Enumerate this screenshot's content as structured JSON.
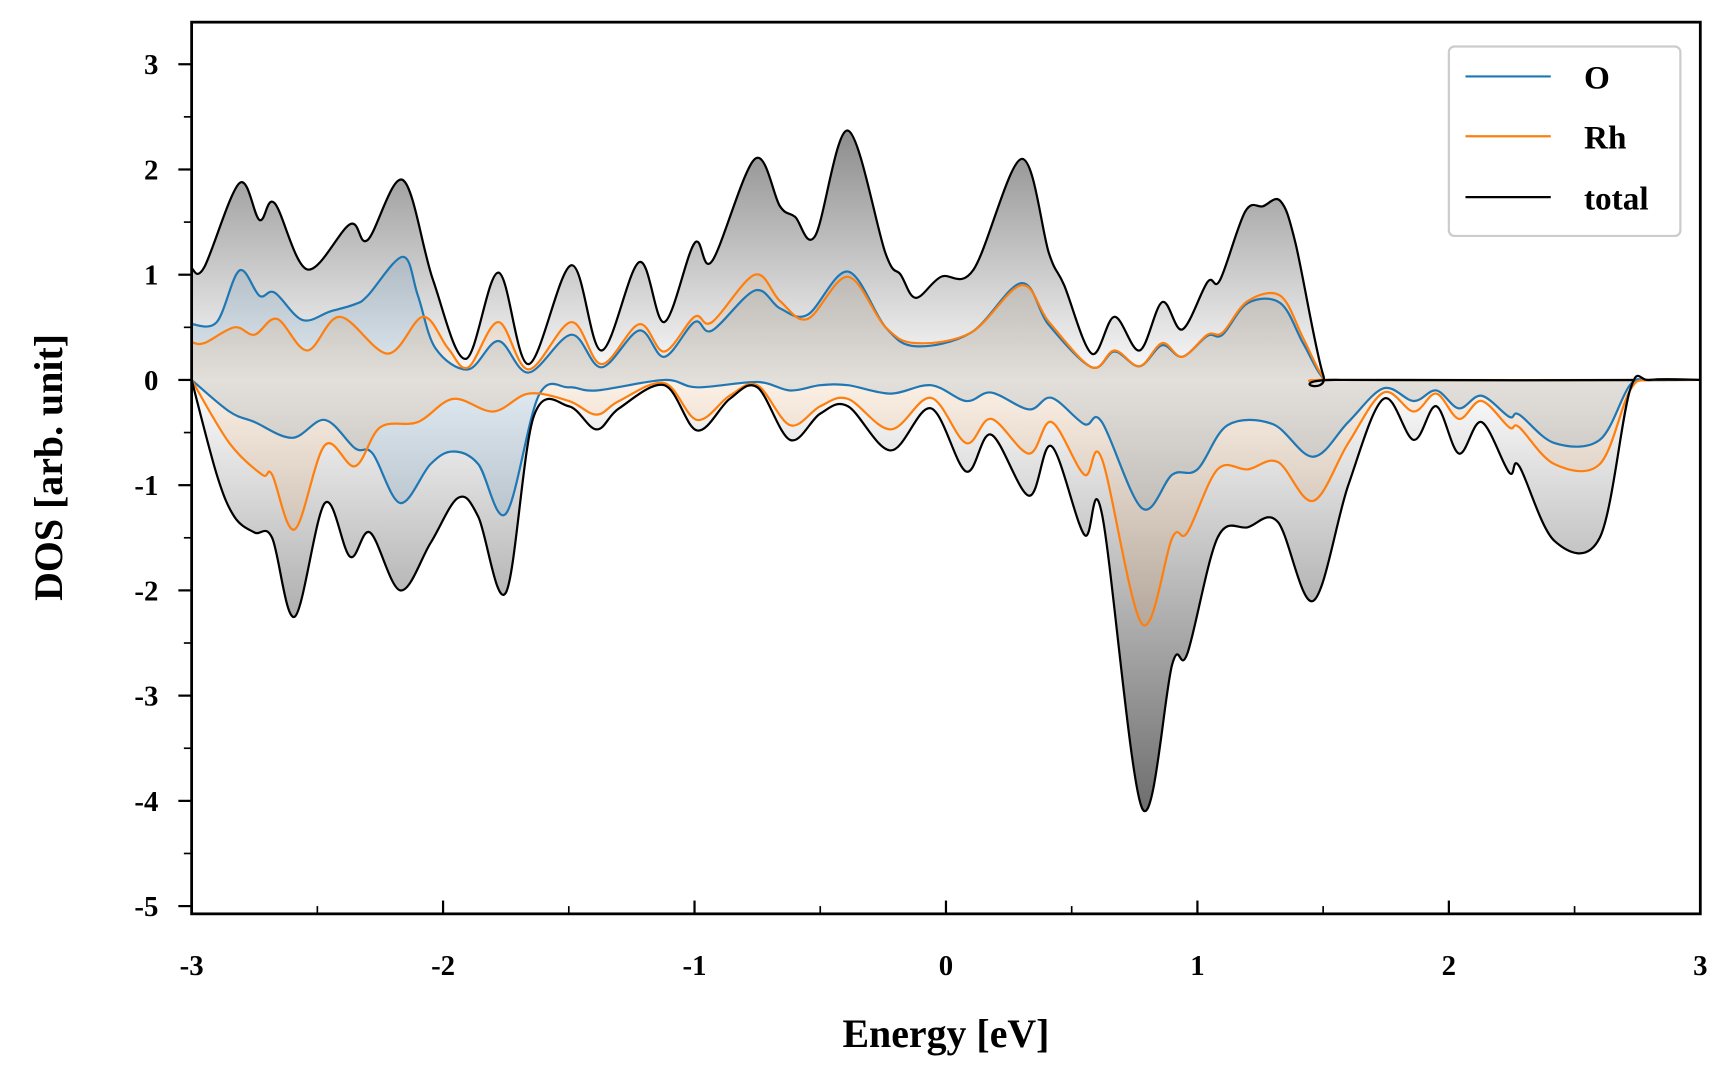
{
  "chart_data": {
    "type": "line",
    "title": "",
    "xlabel": "Energy [eV]",
    "ylabel": "DOS [arb. unit]",
    "xlim": [
      -3,
      3
    ],
    "ylim": [
      -5.1,
      3.35
    ],
    "xticks": [
      "-3",
      "-2",
      "-1",
      "0",
      "1",
      "2",
      "3"
    ],
    "xtick_values": [
      -3,
      -2,
      -1,
      0,
      1,
      2,
      3
    ],
    "yticks": [
      "3",
      "2",
      "1",
      "0",
      "-1",
      "-2",
      "-3",
      "-4",
      "-5"
    ],
    "ytick_values": [
      3,
      2,
      1,
      0,
      -1,
      -2,
      -3,
      -4,
      -5
    ],
    "grid": false,
    "legend_position": "top-right",
    "colors": {
      "O": "#1f77b4",
      "Rh": "#ff7f0e",
      "total": "#000000"
    },
    "series": [
      {
        "name": "O",
        "spin": "up",
        "points": [
          [
            -3,
            0.53
          ],
          [
            -2.9,
            0.55
          ],
          [
            -2.81,
            1.04
          ],
          [
            -2.73,
            0.8
          ],
          [
            -2.67,
            0.83
          ],
          [
            -2.56,
            0.57
          ],
          [
            -2.45,
            0.65
          ],
          [
            -2.35,
            0.72
          ],
          [
            -2.3,
            0.8
          ],
          [
            -2.16,
            1.17
          ],
          [
            -2.1,
            0.8
          ],
          [
            -2.03,
            0.3
          ],
          [
            -1.9,
            0.1
          ],
          [
            -1.78,
            0.37
          ],
          [
            -1.66,
            0.07
          ],
          [
            -1.49,
            0.43
          ],
          [
            -1.37,
            0.12
          ],
          [
            -1.22,
            0.47
          ],
          [
            -1.12,
            0.22
          ],
          [
            -1.0,
            0.55
          ],
          [
            -0.93,
            0.47
          ],
          [
            -0.76,
            0.85
          ],
          [
            -0.66,
            0.68
          ],
          [
            -0.55,
            0.62
          ],
          [
            -0.39,
            1.03
          ],
          [
            -0.24,
            0.5
          ],
          [
            -0.12,
            0.32
          ],
          [
            0.1,
            0.45
          ],
          [
            0.3,
            0.92
          ],
          [
            0.41,
            0.52
          ],
          [
            0.58,
            0.12
          ],
          [
            0.67,
            0.27
          ],
          [
            0.77,
            0.13
          ],
          [
            0.86,
            0.33
          ],
          [
            0.94,
            0.22
          ],
          [
            1.04,
            0.42
          ],
          [
            1.1,
            0.43
          ],
          [
            1.2,
            0.73
          ],
          [
            1.33,
            0.73
          ],
          [
            1.42,
            0.35
          ],
          [
            1.5,
            0.02
          ],
          [
            1.57,
            0
          ],
          [
            3,
            0
          ]
        ]
      },
      {
        "name": "Rh",
        "spin": "up",
        "points": [
          [
            -3,
            0.36
          ],
          [
            -2.95,
            0.35
          ],
          [
            -2.83,
            0.5
          ],
          [
            -2.75,
            0.43
          ],
          [
            -2.66,
            0.58
          ],
          [
            -2.54,
            0.28
          ],
          [
            -2.41,
            0.6
          ],
          [
            -2.22,
            0.25
          ],
          [
            -2.08,
            0.6
          ],
          [
            -1.98,
            0.3
          ],
          [
            -1.9,
            0.12
          ],
          [
            -1.78,
            0.55
          ],
          [
            -1.66,
            0.1
          ],
          [
            -1.49,
            0.55
          ],
          [
            -1.37,
            0.15
          ],
          [
            -1.22,
            0.53
          ],
          [
            -1.12,
            0.27
          ],
          [
            -1.0,
            0.6
          ],
          [
            -0.93,
            0.55
          ],
          [
            -0.76,
            1.0
          ],
          [
            -0.66,
            0.75
          ],
          [
            -0.55,
            0.58
          ],
          [
            -0.39,
            0.98
          ],
          [
            -0.24,
            0.5
          ],
          [
            -0.12,
            0.35
          ],
          [
            0.1,
            0.45
          ],
          [
            0.3,
            0.9
          ],
          [
            0.41,
            0.55
          ],
          [
            0.58,
            0.12
          ],
          [
            0.67,
            0.28
          ],
          [
            0.77,
            0.13
          ],
          [
            0.86,
            0.35
          ],
          [
            0.94,
            0.22
          ],
          [
            1.04,
            0.43
          ],
          [
            1.1,
            0.45
          ],
          [
            1.2,
            0.75
          ],
          [
            1.33,
            0.8
          ],
          [
            1.42,
            0.4
          ],
          [
            1.5,
            0.03
          ],
          [
            1.57,
            0
          ],
          [
            3,
            0
          ]
        ]
      },
      {
        "name": "total",
        "spin": "up",
        "points": [
          [
            -3,
            1.06
          ],
          [
            -2.95,
            1.07
          ],
          [
            -2.81,
            1.87
          ],
          [
            -2.73,
            1.52
          ],
          [
            -2.67,
            1.68
          ],
          [
            -2.54,
            1.05
          ],
          [
            -2.37,
            1.48
          ],
          [
            -2.3,
            1.33
          ],
          [
            -2.16,
            1.9
          ],
          [
            -2.04,
            0.95
          ],
          [
            -1.91,
            0.2
          ],
          [
            -1.78,
            1.02
          ],
          [
            -1.66,
            0.15
          ],
          [
            -1.49,
            1.09
          ],
          [
            -1.37,
            0.28
          ],
          [
            -1.22,
            1.12
          ],
          [
            -1.12,
            0.55
          ],
          [
            -1.0,
            1.3
          ],
          [
            -0.93,
            1.13
          ],
          [
            -0.76,
            2.1
          ],
          [
            -0.66,
            1.65
          ],
          [
            -0.6,
            1.55
          ],
          [
            -0.52,
            1.37
          ],
          [
            -0.39,
            2.37
          ],
          [
            -0.24,
            1.2
          ],
          [
            -0.18,
            1.0
          ],
          [
            -0.12,
            0.78
          ],
          [
            -0.02,
            0.98
          ],
          [
            0.11,
            1.05
          ],
          [
            0.3,
            2.1
          ],
          [
            0.41,
            1.2
          ],
          [
            0.47,
            0.9
          ],
          [
            0.58,
            0.25
          ],
          [
            0.67,
            0.6
          ],
          [
            0.77,
            0.28
          ],
          [
            0.86,
            0.74
          ],
          [
            0.94,
            0.48
          ],
          [
            1.04,
            0.93
          ],
          [
            1.09,
            0.95
          ],
          [
            1.19,
            1.6
          ],
          [
            1.26,
            1.65
          ],
          [
            1.33,
            1.7
          ],
          [
            1.39,
            1.3
          ],
          [
            1.5,
            0.05
          ],
          [
            1.57,
            0
          ],
          [
            3,
            0
          ]
        ]
      },
      {
        "name": "O",
        "spin": "down",
        "points": [
          [
            -3,
            0
          ],
          [
            -2.85,
            -0.3
          ],
          [
            -2.75,
            -0.4
          ],
          [
            -2.6,
            -0.55
          ],
          [
            -2.47,
            -0.38
          ],
          [
            -2.35,
            -0.65
          ],
          [
            -2.28,
            -0.7
          ],
          [
            -2.17,
            -1.17
          ],
          [
            -2.05,
            -0.8
          ],
          [
            -1.96,
            -0.68
          ],
          [
            -1.86,
            -0.8
          ],
          [
            -1.75,
            -1.27
          ],
          [
            -1.62,
            -0.15
          ],
          [
            -1.5,
            -0.07
          ],
          [
            -1.39,
            -0.1
          ],
          [
            -1.12,
            0
          ],
          [
            -0.99,
            -0.07
          ],
          [
            -0.75,
            -0.02
          ],
          [
            -0.62,
            -0.1
          ],
          [
            -0.5,
            -0.05
          ],
          [
            -0.39,
            -0.05
          ],
          [
            -0.22,
            -0.13
          ],
          [
            -0.06,
            -0.05
          ],
          [
            0.08,
            -0.2
          ],
          [
            0.18,
            -0.12
          ],
          [
            0.33,
            -0.28
          ],
          [
            0.42,
            -0.17
          ],
          [
            0.55,
            -0.42
          ],
          [
            0.62,
            -0.4
          ],
          [
            0.78,
            -1.22
          ],
          [
            0.9,
            -0.9
          ],
          [
            1.0,
            -0.85
          ],
          [
            1.12,
            -0.43
          ],
          [
            1.3,
            -0.42
          ],
          [
            1.46,
            -0.73
          ],
          [
            1.6,
            -0.4
          ],
          [
            1.74,
            -0.08
          ],
          [
            1.86,
            -0.2
          ],
          [
            1.95,
            -0.1
          ],
          [
            2.04,
            -0.27
          ],
          [
            2.13,
            -0.15
          ],
          [
            2.24,
            -0.35
          ],
          [
            2.28,
            -0.33
          ],
          [
            2.42,
            -0.6
          ],
          [
            2.6,
            -0.57
          ],
          [
            2.72,
            -0.05
          ],
          [
            2.8,
            0
          ],
          [
            3,
            0
          ]
        ]
      },
      {
        "name": "Rh",
        "spin": "down",
        "points": [
          [
            -3,
            0
          ],
          [
            -2.85,
            -0.6
          ],
          [
            -2.72,
            -0.9
          ],
          [
            -2.68,
            -0.9
          ],
          [
            -2.59,
            -1.42
          ],
          [
            -2.47,
            -0.62
          ],
          [
            -2.35,
            -0.82
          ],
          [
            -2.25,
            -0.45
          ],
          [
            -2.1,
            -0.4
          ],
          [
            -1.96,
            -0.18
          ],
          [
            -1.8,
            -0.3
          ],
          [
            -1.66,
            -0.13
          ],
          [
            -1.5,
            -0.2
          ],
          [
            -1.39,
            -0.33
          ],
          [
            -1.3,
            -0.2
          ],
          [
            -1.12,
            -0.03
          ],
          [
            -0.99,
            -0.38
          ],
          [
            -0.86,
            -0.15
          ],
          [
            -0.75,
            -0.05
          ],
          [
            -0.62,
            -0.43
          ],
          [
            -0.5,
            -0.25
          ],
          [
            -0.39,
            -0.18
          ],
          [
            -0.22,
            -0.47
          ],
          [
            -0.06,
            -0.17
          ],
          [
            0.08,
            -0.6
          ],
          [
            0.18,
            -0.37
          ],
          [
            0.33,
            -0.7
          ],
          [
            0.42,
            -0.4
          ],
          [
            0.55,
            -0.9
          ],
          [
            0.62,
            -0.75
          ],
          [
            0.78,
            -2.32
          ],
          [
            0.9,
            -1.5
          ],
          [
            0.96,
            -1.45
          ],
          [
            1.08,
            -0.85
          ],
          [
            1.2,
            -0.85
          ],
          [
            1.32,
            -0.78
          ],
          [
            1.46,
            -1.15
          ],
          [
            1.6,
            -0.6
          ],
          [
            1.74,
            -0.12
          ],
          [
            1.86,
            -0.3
          ],
          [
            1.95,
            -0.13
          ],
          [
            2.04,
            -0.37
          ],
          [
            2.13,
            -0.2
          ],
          [
            2.24,
            -0.45
          ],
          [
            2.28,
            -0.45
          ],
          [
            2.42,
            -0.8
          ],
          [
            2.6,
            -0.8
          ],
          [
            2.72,
            -0.1
          ],
          [
            2.8,
            0
          ],
          [
            3,
            0
          ]
        ]
      },
      {
        "name": "total",
        "spin": "down",
        "points": [
          [
            -3,
            0
          ],
          [
            -2.9,
            -0.9
          ],
          [
            -2.83,
            -1.3
          ],
          [
            -2.75,
            -1.45
          ],
          [
            -2.68,
            -1.5
          ],
          [
            -2.59,
            -2.25
          ],
          [
            -2.47,
            -1.17
          ],
          [
            -2.37,
            -1.68
          ],
          [
            -2.29,
            -1.45
          ],
          [
            -2.17,
            -2.0
          ],
          [
            -2.05,
            -1.55
          ],
          [
            -1.94,
            -1.12
          ],
          [
            -1.86,
            -1.3
          ],
          [
            -1.75,
            -2.02
          ],
          [
            -1.64,
            -0.35
          ],
          [
            -1.5,
            -0.25
          ],
          [
            -1.39,
            -0.47
          ],
          [
            -1.3,
            -0.27
          ],
          [
            -1.12,
            -0.05
          ],
          [
            -0.99,
            -0.48
          ],
          [
            -0.86,
            -0.18
          ],
          [
            -0.75,
            -0.07
          ],
          [
            -0.62,
            -0.57
          ],
          [
            -0.5,
            -0.32
          ],
          [
            -0.39,
            -0.25
          ],
          [
            -0.22,
            -0.67
          ],
          [
            -0.06,
            -0.27
          ],
          [
            0.08,
            -0.87
          ],
          [
            0.18,
            -0.52
          ],
          [
            0.33,
            -1.1
          ],
          [
            0.42,
            -0.63
          ],
          [
            0.55,
            -1.47
          ],
          [
            0.62,
            -1.27
          ],
          [
            0.78,
            -4.07
          ],
          [
            0.9,
            -2.7
          ],
          [
            0.96,
            -2.6
          ],
          [
            1.08,
            -1.5
          ],
          [
            1.2,
            -1.4
          ],
          [
            1.32,
            -1.35
          ],
          [
            1.46,
            -2.1
          ],
          [
            1.6,
            -1.0
          ],
          [
            1.74,
            -0.18
          ],
          [
            1.86,
            -0.57
          ],
          [
            1.95,
            -0.25
          ],
          [
            2.04,
            -0.7
          ],
          [
            2.13,
            -0.4
          ],
          [
            2.24,
            -0.88
          ],
          [
            2.28,
            -0.82
          ],
          [
            2.42,
            -1.53
          ],
          [
            2.6,
            -1.5
          ],
          [
            2.72,
            -0.1
          ],
          [
            2.8,
            0
          ],
          [
            3,
            0
          ]
        ]
      }
    ],
    "legend": [
      "O",
      "Rh",
      "total"
    ]
  }
}
